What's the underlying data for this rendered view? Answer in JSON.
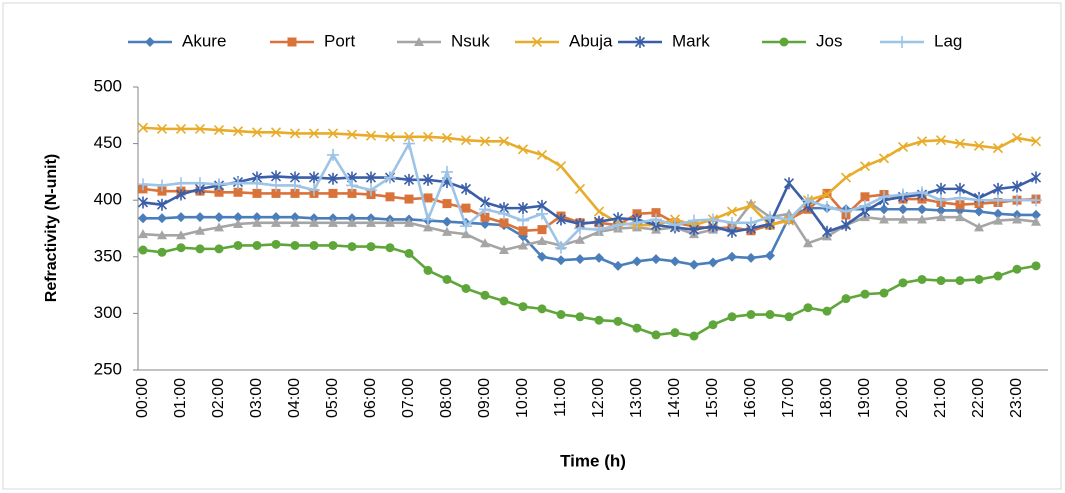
{
  "chart_data": {
    "type": "line",
    "x_label": "Time (h)",
    "y_label": "Refractivity (N-unit)",
    "categories": [
      "00:00",
      null,
      "01:00",
      null,
      "02:00",
      null,
      "03:00",
      null,
      "04:00",
      null,
      "05:00",
      null,
      "06:00",
      null,
      "07:00",
      null,
      "08:00",
      null,
      "09:00",
      null,
      "10:00",
      null,
      "11:00",
      null,
      "12:00",
      null,
      "13:00",
      null,
      "14:00",
      null,
      "15:00",
      null,
      "16:00",
      null,
      "17:00",
      null,
      "18:00",
      null,
      "19:00",
      null,
      "20:00",
      null,
      "21:00",
      null,
      "22:00",
      null,
      "23:00",
      null
    ],
    "ylim": [
      250,
      500
    ],
    "yticks": [
      250,
      300,
      350,
      400,
      450,
      500
    ],
    "grid": false,
    "legend": "top",
    "series": [
      {
        "name": "Akure",
        "color": "#4a7ebb",
        "marker": "diamond",
        "values": [
          384,
          384,
          385,
          385,
          385,
          385,
          385,
          385,
          385,
          384,
          384,
          384,
          384,
          383,
          383,
          382,
          381,
          380,
          379,
          378,
          368,
          350,
          347,
          348,
          349,
          342,
          346,
          348,
          346,
          343,
          345,
          350,
          349,
          351,
          385,
          393,
          393,
          392,
          392,
          392,
          392,
          392,
          391,
          391,
          390,
          388,
          387,
          387
        ]
      },
      {
        "name": "Port",
        "color": "#d9733a",
        "marker": "square",
        "values": [
          410,
          408,
          408,
          408,
          407,
          407,
          406,
          406,
          406,
          406,
          406,
          406,
          405,
          403,
          401,
          402,
          397,
          393,
          385,
          380,
          373,
          374,
          386,
          380,
          380,
          378,
          388,
          389,
          380,
          377,
          375,
          376,
          373,
          378,
          383,
          392,
          406,
          387,
          403,
          405,
          401,
          401,
          398,
          396,
          397,
          398,
          400,
          401
        ]
      },
      {
        "name": "Nsuk",
        "color": "#a5a5a5",
        "marker": "triangle",
        "values": [
          370,
          369,
          369,
          373,
          376,
          379,
          380,
          380,
          380,
          380,
          380,
          380,
          380,
          380,
          380,
          376,
          372,
          370,
          362,
          356,
          360,
          364,
          360,
          365,
          372,
          375,
          376,
          374,
          376,
          370,
          374,
          375,
          397,
          385,
          388,
          362,
          368,
          378,
          385,
          383,
          383,
          383,
          385,
          385,
          376,
          382,
          383,
          381
        ]
      },
      {
        "name": "Abuja",
        "color": "#e8ac2a",
        "marker": "x",
        "values": [
          464,
          463,
          463,
          463,
          462,
          461,
          460,
          460,
          459,
          459,
          459,
          458,
          457,
          456,
          456,
          456,
          455,
          453,
          452,
          452,
          445,
          440,
          430,
          410,
          390,
          380,
          378,
          378,
          383,
          378,
          383,
          390,
          395,
          378,
          382,
          400,
          405,
          420,
          430,
          437,
          447,
          452,
          453,
          450,
          448,
          446,
          455,
          452
        ]
      },
      {
        "name": "Mark",
        "color": "#3b5ea8",
        "marker": "asterisk",
        "values": [
          398,
          396,
          405,
          410,
          413,
          416,
          420,
          421,
          420,
          420,
          419,
          420,
          420,
          420,
          418,
          418,
          416,
          410,
          398,
          393,
          393,
          395,
          383,
          379,
          381,
          384,
          383,
          378,
          376,
          374,
          377,
          372,
          375,
          379,
          415,
          395,
          372,
          378,
          390,
          400,
          403,
          405,
          410,
          410,
          402,
          410,
          412,
          420
        ]
      },
      {
        "name": "Jos",
        "color": "#5ea63a",
        "marker": "circle",
        "values": [
          356,
          354,
          358,
          357,
          357,
          360,
          360,
          361,
          360,
          360,
          360,
          359,
          359,
          358,
          353,
          338,
          330,
          322,
          316,
          311,
          306,
          304,
          299,
          297,
          294,
          293,
          287,
          281,
          283,
          280,
          290,
          297,
          299,
          299,
          297,
          305,
          302,
          313,
          317,
          318,
          327,
          330,
          329,
          329,
          330,
          333,
          339,
          342
        ]
      },
      {
        "name": "Lag",
        "color": "#9dc3e6",
        "marker": "plus",
        "values": [
          414,
          413,
          415,
          415,
          414,
          415,
          415,
          413,
          413,
          409,
          440,
          413,
          409,
          420,
          450,
          383,
          425,
          377,
          392,
          388,
          382,
          388,
          358,
          375,
          374,
          378,
          380,
          383,
          378,
          382,
          383,
          380,
          380,
          385,
          383,
          400,
          394,
          390,
          395,
          403,
          405,
          407,
          400,
          402,
          400,
          400,
          400,
          400
        ]
      }
    ]
  }
}
